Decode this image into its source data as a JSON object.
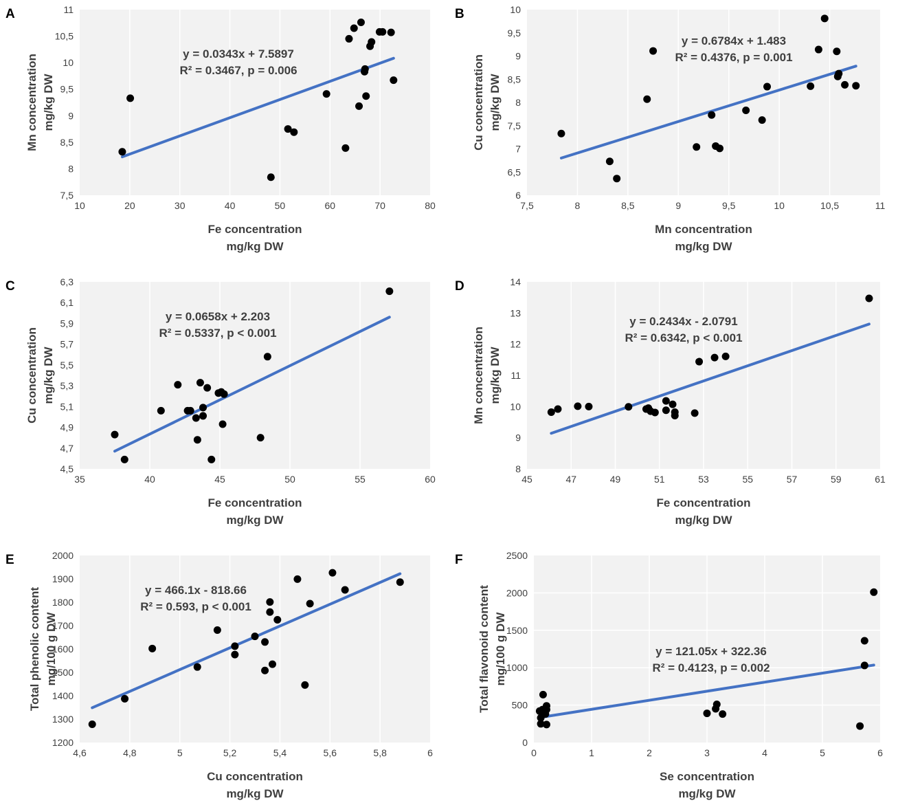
{
  "chart_data": [
    {
      "type": "scatter",
      "panel_label": "A",
      "xlabel": [
        "Fe concentration",
        "mg/kg DW"
      ],
      "ylabel": [
        "Mn concentration",
        "mg/kg DW"
      ],
      "xlim": [
        10,
        80
      ],
      "ylim": [
        7.5,
        11
      ],
      "xticks": [
        "10",
        "20",
        "30",
        "40",
        "50",
        "60",
        "70",
        "80"
      ],
      "yticks": [
        "7,5",
        "8",
        "8,5",
        "9",
        "9,5",
        "10",
        "10,5",
        "11"
      ],
      "grid": "vertical",
      "points": [
        [
          18.5,
          8.32
        ],
        [
          20.1,
          9.33
        ],
        [
          48.2,
          7.84
        ],
        [
          51.6,
          8.75
        ],
        [
          52.8,
          8.69
        ],
        [
          59.3,
          9.41
        ],
        [
          63.1,
          8.39
        ],
        [
          63.8,
          10.45
        ],
        [
          64.8,
          10.65
        ],
        [
          65.8,
          9.18
        ],
        [
          66.2,
          10.76
        ],
        [
          66.9,
          9.83
        ],
        [
          67.0,
          9.88
        ],
        [
          67.2,
          9.37
        ],
        [
          68.0,
          10.31
        ],
        [
          68.3,
          10.39
        ],
        [
          69.9,
          10.58
        ],
        [
          70.5,
          10.58
        ],
        [
          72.2,
          10.57
        ],
        [
          72.7,
          9.67
        ]
      ],
      "trend": {
        "slope": 0.0343,
        "intercept": 7.5897,
        "x_range": [
          18.5,
          72.7
        ]
      },
      "annotation": [
        "y = 0.0343x + 7.5897",
        "R² = 0.3467, p = 0.006"
      ]
    },
    {
      "type": "scatter",
      "panel_label": "B",
      "xlabel": [
        "Mn concentration",
        "mg/kg DW"
      ],
      "ylabel": [
        "Cu concentration",
        "mg/kg DW"
      ],
      "xlim": [
        7.5,
        11
      ],
      "ylim": [
        6,
        10
      ],
      "xticks": [
        "7,5",
        "8",
        "8,5",
        "9",
        "9,5",
        "10",
        "10,5",
        "11"
      ],
      "yticks": [
        "6",
        "6,5",
        "7",
        "7,5",
        "8",
        "8,5",
        "9",
        "9,5",
        "10"
      ],
      "grid": "vertical",
      "points": [
        [
          7.84,
          7.33
        ],
        [
          8.32,
          6.73
        ],
        [
          8.39,
          6.36
        ],
        [
          8.69,
          8.07
        ],
        [
          8.75,
          9.11
        ],
        [
          9.18,
          7.04
        ],
        [
          9.33,
          7.73
        ],
        [
          9.37,
          7.06
        ],
        [
          9.41,
          7.01
        ],
        [
          9.67,
          7.83
        ],
        [
          9.83,
          7.62
        ],
        [
          9.88,
          8.34
        ],
        [
          10.31,
          8.35
        ],
        [
          10.39,
          9.14
        ],
        [
          10.45,
          9.81
        ],
        [
          10.57,
          9.1
        ],
        [
          10.58,
          8.56
        ],
        [
          10.59,
          8.62
        ],
        [
          10.65,
          8.38
        ],
        [
          10.76,
          8.36
        ]
      ],
      "trend": {
        "slope": 0.6784,
        "intercept": 1.483,
        "x_range": [
          7.84,
          10.76
        ]
      },
      "annotation": [
        "y = 0.6784x + 1.483",
        "R² = 0.4376, p = 0.001"
      ]
    },
    {
      "type": "scatter",
      "panel_label": "C",
      "xlabel": [
        "Fe concentration",
        "mg/kg DW"
      ],
      "ylabel": [
        "Cu concentration",
        "mg/kg DW"
      ],
      "xlim": [
        35,
        60
      ],
      "ylim": [
        4.5,
        6.3
      ],
      "xticks": [
        "35",
        "40",
        "45",
        "50",
        "55",
        "60"
      ],
      "yticks": [
        "4,5",
        "4,7",
        "4,9",
        "5,1",
        "5,3",
        "5,5",
        "5,7",
        "5,9",
        "6,1",
        "6,3"
      ],
      "grid": "vertical",
      "points": [
        [
          37.5,
          4.83
        ],
        [
          38.2,
          4.59
        ],
        [
          40.8,
          5.06
        ],
        [
          42.0,
          5.31
        ],
        [
          42.7,
          5.06
        ],
        [
          42.9,
          5.06
        ],
        [
          43.3,
          4.99
        ],
        [
          43.4,
          4.78
        ],
        [
          43.6,
          5.33
        ],
        [
          43.8,
          5.09
        ],
        [
          43.8,
          5.01
        ],
        [
          44.1,
          5.28
        ],
        [
          44.4,
          4.59
        ],
        [
          44.9,
          5.23
        ],
        [
          45.1,
          5.24
        ],
        [
          45.2,
          4.93
        ],
        [
          45.3,
          5.22
        ],
        [
          47.9,
          4.8
        ],
        [
          48.4,
          5.58
        ],
        [
          57.1,
          6.21
        ]
      ],
      "trend": {
        "slope": 0.0658,
        "intercept": 2.203,
        "x_range": [
          37.5,
          57.1
        ]
      },
      "annotation": [
        "y = 0.0658x + 2.203",
        "R² = 0.5337, p < 0.001"
      ]
    },
    {
      "type": "scatter",
      "panel_label": "D",
      "xlabel": [
        "Fe concentration",
        "mg/kg DW"
      ],
      "ylabel": [
        "Mn concentration",
        "mg/kg DW"
      ],
      "xlim": [
        45,
        61
      ],
      "ylim": [
        8,
        14
      ],
      "xticks": [
        "45",
        "47",
        "49",
        "51",
        "53",
        "55",
        "57",
        "59",
        "61"
      ],
      "yticks": [
        "8",
        "9",
        "10",
        "11",
        "12",
        "13",
        "14"
      ],
      "grid": "vertical",
      "points": [
        [
          46.1,
          9.82
        ],
        [
          46.4,
          9.92
        ],
        [
          47.3,
          10.01
        ],
        [
          47.8,
          10.0
        ],
        [
          49.6,
          9.99
        ],
        [
          50.4,
          9.92
        ],
        [
          50.5,
          9.95
        ],
        [
          50.6,
          9.85
        ],
        [
          50.8,
          9.81
        ],
        [
          51.3,
          10.18
        ],
        [
          51.3,
          9.88
        ],
        [
          51.6,
          10.07
        ],
        [
          51.7,
          9.82
        ],
        [
          51.7,
          9.71
        ],
        [
          52.6,
          9.79
        ],
        [
          52.8,
          11.44
        ],
        [
          53.5,
          11.57
        ],
        [
          54.0,
          11.61
        ],
        [
          60.5,
          13.47
        ]
      ],
      "trend": {
        "slope": 0.2434,
        "intercept": -2.0791,
        "x_range": [
          46.1,
          60.5
        ]
      },
      "annotation": [
        "y = 0.2434x - 2.0791",
        "R² = 0.6342, p < 0.001"
      ]
    },
    {
      "type": "scatter",
      "panel_label": "E",
      "xlabel": [
        "Cu concentration",
        "mg/kg DW"
      ],
      "ylabel": [
        "Total phenolic content",
        "mg/100 g DW"
      ],
      "xlim": [
        4.6,
        6
      ],
      "ylim": [
        1200,
        2000
      ],
      "xticks": [
        "4,6",
        "4,8",
        "5",
        "5,2",
        "5,4",
        "5,6",
        "5,8",
        "6"
      ],
      "yticks": [
        "1200",
        "1300",
        "1400",
        "1500",
        "1600",
        "1700",
        "1800",
        "1900",
        "2000"
      ],
      "grid": "vertical",
      "points": [
        [
          4.65,
          1278
        ],
        [
          4.78,
          1387
        ],
        [
          4.89,
          1602
        ],
        [
          5.07,
          1523
        ],
        [
          5.15,
          1681
        ],
        [
          5.22,
          1576
        ],
        [
          5.22,
          1612
        ],
        [
          5.3,
          1654
        ],
        [
          5.34,
          1508
        ],
        [
          5.34,
          1630
        ],
        [
          5.36,
          1801
        ],
        [
          5.36,
          1758
        ],
        [
          5.37,
          1535
        ],
        [
          5.39,
          1725
        ],
        [
          5.47,
          1899
        ],
        [
          5.5,
          1446
        ],
        [
          5.52,
          1794
        ],
        [
          5.61,
          1926
        ],
        [
          5.66,
          1853
        ],
        [
          5.88,
          1886
        ]
      ],
      "trend": {
        "slope": 466.1,
        "intercept": -818.66,
        "x_range": [
          4.65,
          5.88
        ]
      },
      "annotation": [
        "y = 466.1x - 818.66",
        "R² = 0.593, p < 0.001"
      ]
    },
    {
      "type": "scatter",
      "panel_label": "F",
      "xlabel": [
        "Se concentration",
        "mg/kg DW"
      ],
      "ylabel": [
        "Total flavonoid content",
        "mg/100 g DW"
      ],
      "xlim": [
        0,
        6
      ],
      "ylim": [
        0,
        2500
      ],
      "xticks": [
        "0",
        "1",
        "2",
        "3",
        "4",
        "5",
        "6"
      ],
      "yticks": [
        "0",
        "500",
        "1000",
        "1500",
        "2000",
        "2500"
      ],
      "grid": "both",
      "points": [
        [
          0.1,
          420
        ],
        [
          0.12,
          330
        ],
        [
          0.12,
          250
        ],
        [
          0.14,
          400
        ],
        [
          0.15,
          440
        ],
        [
          0.16,
          640
        ],
        [
          0.2,
          380
        ],
        [
          0.22,
          440
        ],
        [
          0.22,
          490
        ],
        [
          0.22,
          240
        ],
        [
          3.0,
          390
        ],
        [
          3.15,
          450
        ],
        [
          3.17,
          510
        ],
        [
          3.27,
          380
        ],
        [
          5.65,
          220
        ],
        [
          5.73,
          1360
        ],
        [
          5.73,
          1030
        ],
        [
          5.89,
          2010
        ]
      ],
      "trend": {
        "slope": 121.05,
        "intercept": 322.36,
        "x_range": [
          0.1,
          5.89
        ]
      },
      "annotation": [
        "y = 121.05x + 322.36",
        "R² = 0.4123, p = 0.002"
      ]
    }
  ],
  "colors": {
    "plot_background": "#f2f2f2",
    "gridline": "#ffffff",
    "trendline": "#4472c4",
    "point": "#000000",
    "text": "#3f3f3f",
    "panel_label": "#000000"
  }
}
